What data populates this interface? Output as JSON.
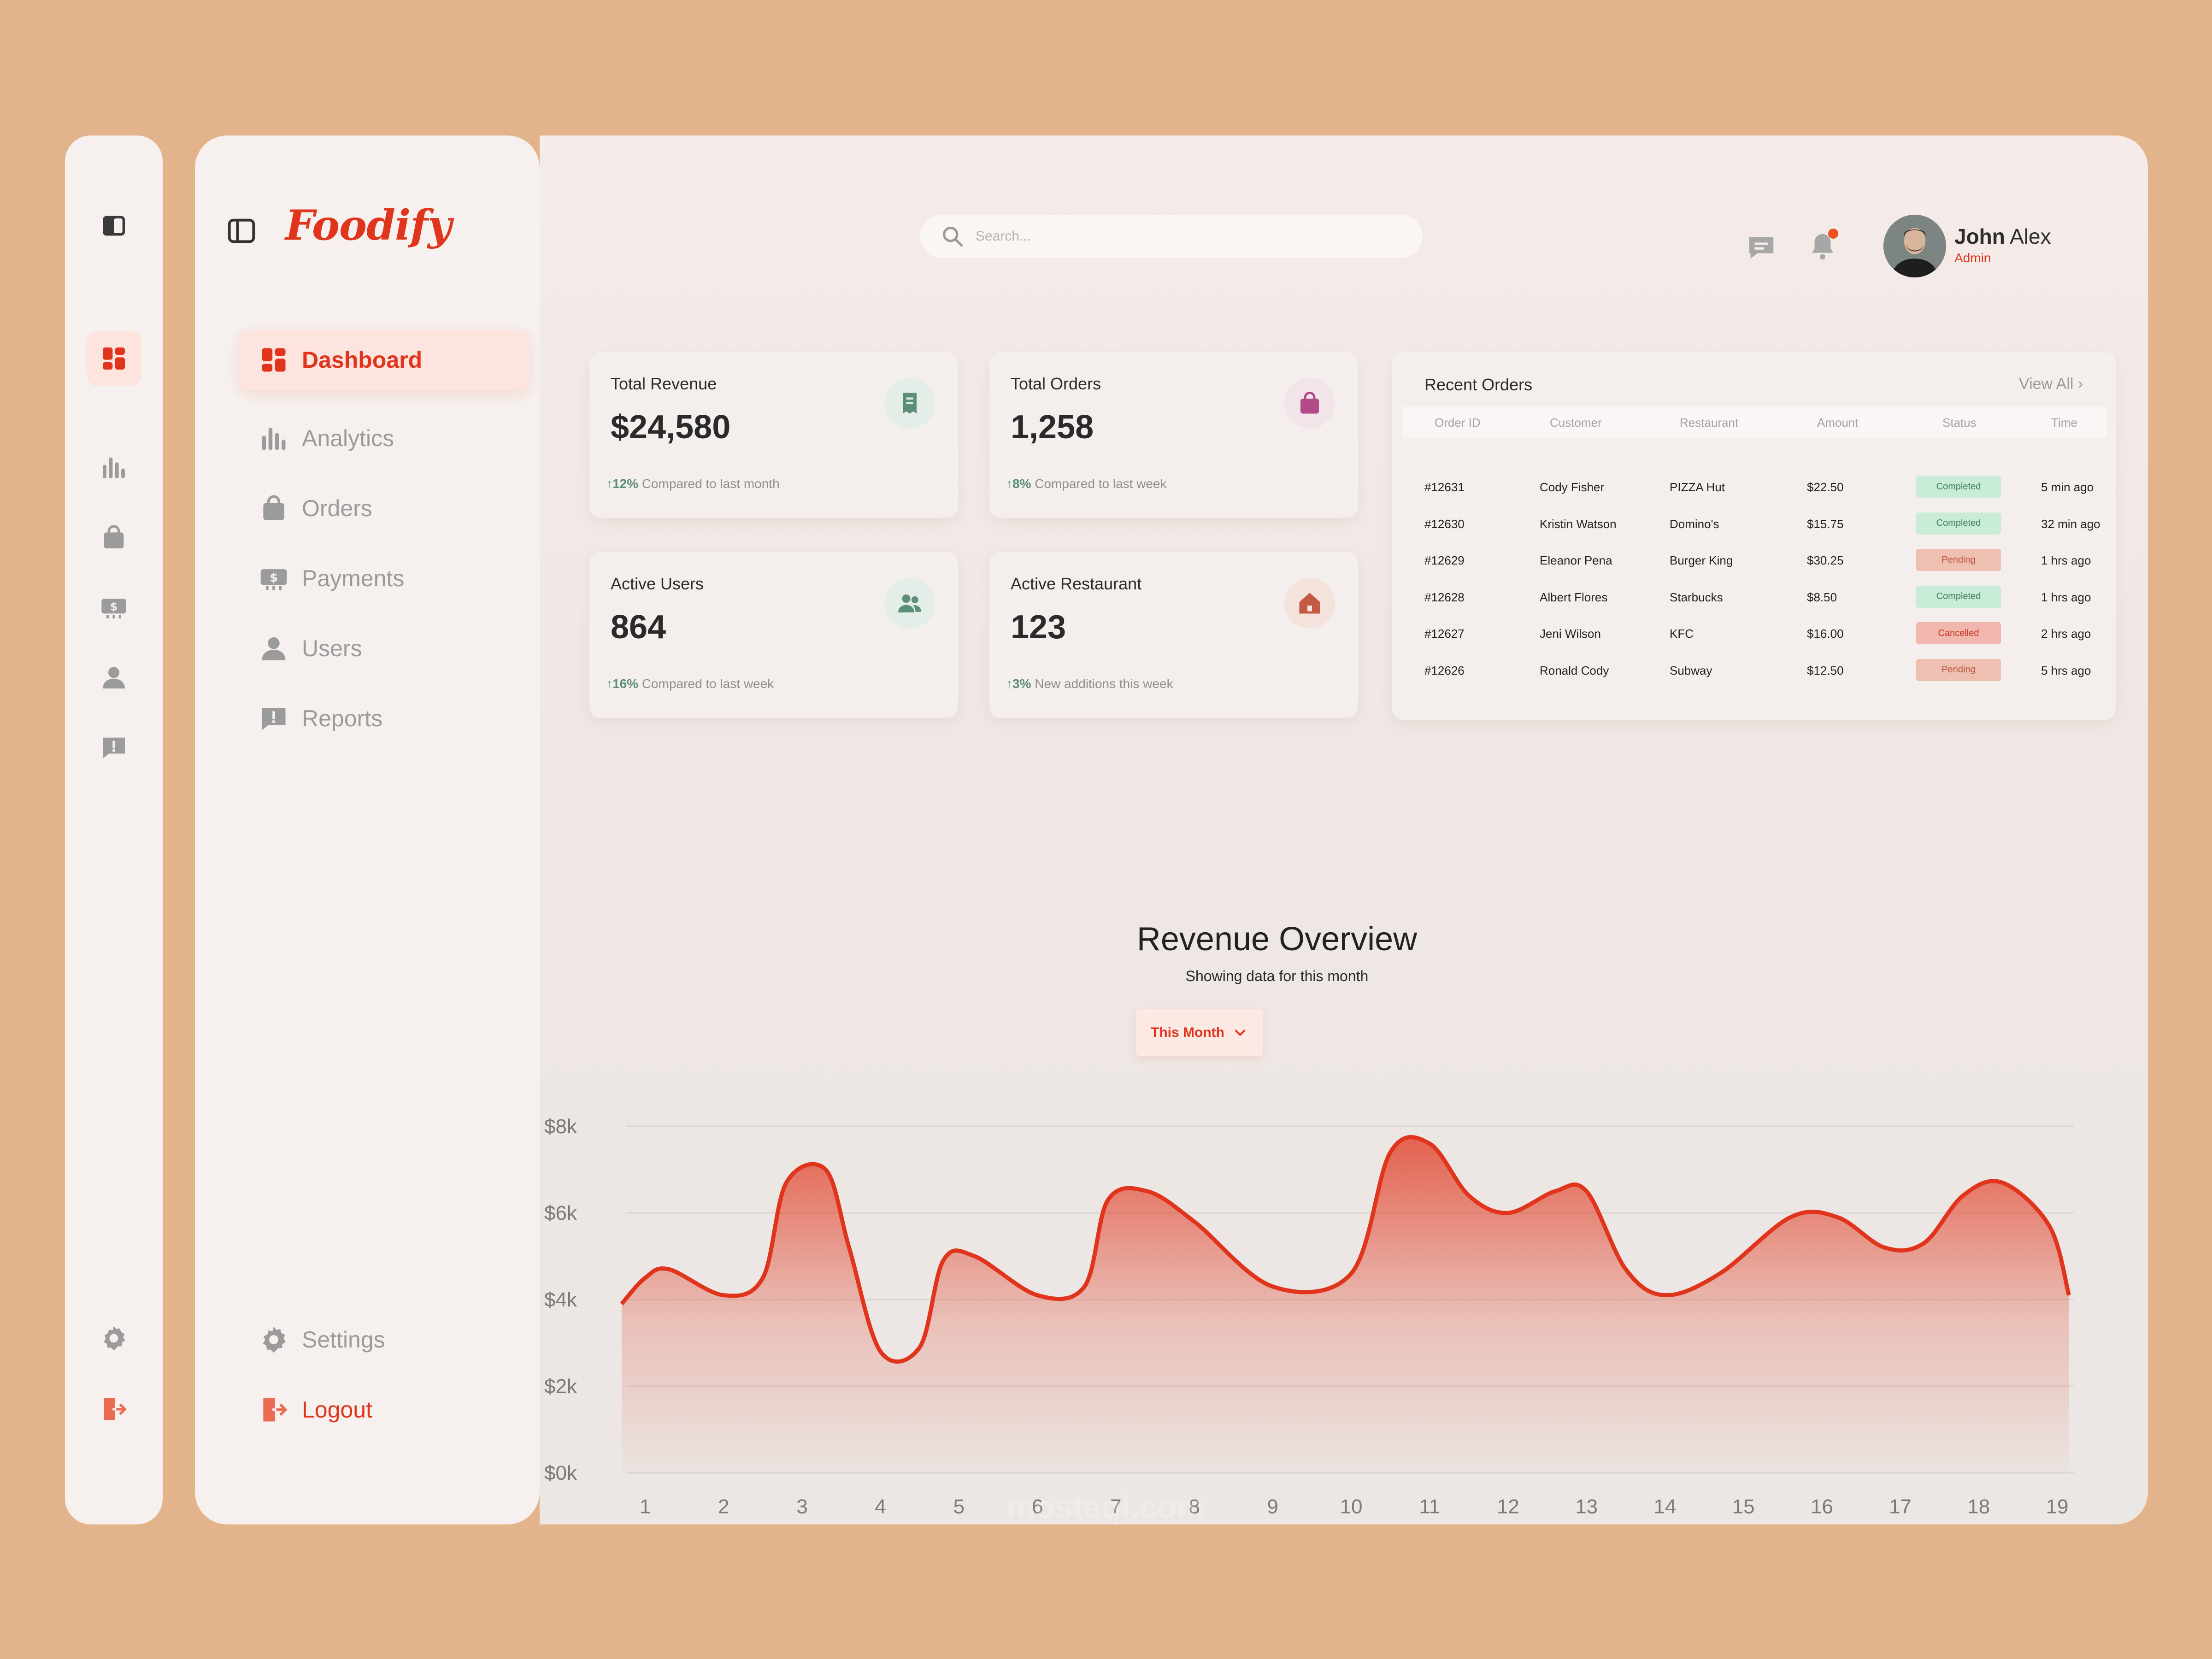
{
  "app": {
    "brand": "Foodify"
  },
  "nav": {
    "items": [
      {
        "label": "Dashboard",
        "icon": "dashboard-icon",
        "active": true
      },
      {
        "label": "Analytics",
        "icon": "bar-chart-icon"
      },
      {
        "label": "Orders",
        "icon": "shopping-bag-icon"
      },
      {
        "label": "Payments",
        "icon": "payment-icon"
      },
      {
        "label": "Users",
        "icon": "user-icon"
      },
      {
        "label": "Reports",
        "icon": "report-icon"
      }
    ],
    "bottom": [
      {
        "label": "Settings",
        "icon": "gear-icon"
      },
      {
        "label": "Logout",
        "icon": "logout-icon"
      }
    ]
  },
  "header": {
    "search_placeholder": "Search...",
    "user": {
      "first_name": "John",
      "last_name": "Alex",
      "role": "Admin"
    }
  },
  "stats": [
    {
      "title": "Total Revenue",
      "value": "$24,580",
      "change": "12%",
      "note": "Compared to last month",
      "icon": "receipt-icon"
    },
    {
      "title": "Total Orders",
      "value": "1,258",
      "change": "8%",
      "note": "Compared to last week",
      "icon": "shopping-bag-icon"
    },
    {
      "title": "Active Users",
      "value": "864",
      "change": "16%",
      "note": "Compared to last week",
      "icon": "users-icon"
    },
    {
      "title": "Active Restaurant",
      "value": "123",
      "change": "3%",
      "note": "New additions this week",
      "icon": "home-icon"
    }
  ],
  "recent_orders": {
    "title": "Recent Orders",
    "view_all": "View All",
    "columns": [
      "Order ID",
      "Customer",
      "Restaurant",
      "Amount",
      "Status",
      "Time"
    ],
    "rows": [
      {
        "id": "#12631",
        "customer": "Cody Fisher",
        "restaurant": "PIZZA Hut",
        "amount": "$22.50",
        "status": "Completed",
        "time": "5 min ago"
      },
      {
        "id": "#12630",
        "customer": "Kristin Watson",
        "restaurant": "Domino's",
        "amount": "$15.75",
        "status": "Completed",
        "time": "32 min ago"
      },
      {
        "id": "#12629",
        "customer": "Eleanor Pena",
        "restaurant": "Burger King",
        "amount": "$30.25",
        "status": "Pending",
        "time": "1 hrs ago"
      },
      {
        "id": "#12628",
        "customer": "Albert Flores",
        "restaurant": "Starbucks",
        "amount": "$8.50",
        "status": "Completed",
        "time": "1 hrs ago"
      },
      {
        "id": "#12627",
        "customer": "Jeni Wilson",
        "restaurant": "KFC",
        "amount": "$16.00",
        "status": "Cancelled",
        "time": "2 hrs ago"
      },
      {
        "id": "#12626",
        "customer": "Ronald Cody",
        "restaurant": "Subway",
        "amount": "$12.50",
        "status": "Pending",
        "time": "5 hrs ago"
      }
    ]
  },
  "revenue": {
    "title": "Revenue Overview",
    "subtitle": "Showing data for this month",
    "period": "This Month"
  },
  "colors": {
    "accent": "#e0351c",
    "background": "#e3b38c",
    "completed_bg": "#c9ecd9",
    "completed_text": "#3f7a5e",
    "pending_bg": "#eec0b2",
    "pending_text": "#b8523a",
    "cancelled_bg": "#f1b6ad",
    "cancelled_text": "#c8321e"
  },
  "watermark": "mostaql.com",
  "chart_data": {
    "type": "area",
    "x": [
      1,
      2,
      3,
      4,
      5,
      6,
      7,
      8,
      9,
      10,
      11,
      12,
      13,
      14,
      15,
      16,
      17,
      18,
      19
    ],
    "points": [
      [
        0.7,
        3900
      ],
      [
        1,
        4500
      ],
      [
        1.3,
        4700
      ],
      [
        2,
        4100
      ],
      [
        2.5,
        4500
      ],
      [
        2.8,
        6700
      ],
      [
        3.3,
        7000
      ],
      [
        3.6,
        5200
      ],
      [
        4,
        2800
      ],
      [
        4.5,
        2900
      ],
      [
        4.8,
        4900
      ],
      [
        5.2,
        5000
      ],
      [
        6,
        4100
      ],
      [
        6.6,
        4300
      ],
      [
        6.9,
        6300
      ],
      [
        7.4,
        6500
      ],
      [
        8,
        5800
      ],
      [
        9,
        4300
      ],
      [
        10,
        4600
      ],
      [
        10.5,
        7400
      ],
      [
        11,
        7600
      ],
      [
        11.5,
        6400
      ],
      [
        12,
        6000
      ],
      [
        12.6,
        6500
      ],
      [
        13,
        6500
      ],
      [
        13.5,
        4700
      ],
      [
        14,
        4100
      ],
      [
        14.7,
        4600
      ],
      [
        15.6,
        5900
      ],
      [
        16.2,
        5900
      ],
      [
        16.8,
        5200
      ],
      [
        17.3,
        5300
      ],
      [
        17.8,
        6400
      ],
      [
        18.3,
        6700
      ],
      [
        18.9,
        5700
      ],
      [
        19.15,
        4100
      ]
    ],
    "ylim": [
      0,
      8000
    ],
    "yticks": [
      "$0k",
      "$2k",
      "$4k",
      "$6k",
      "$8k"
    ],
    "ytick_values": [
      0,
      2000,
      4000,
      6000,
      8000
    ],
    "grid": true,
    "color": "#e0351c"
  }
}
